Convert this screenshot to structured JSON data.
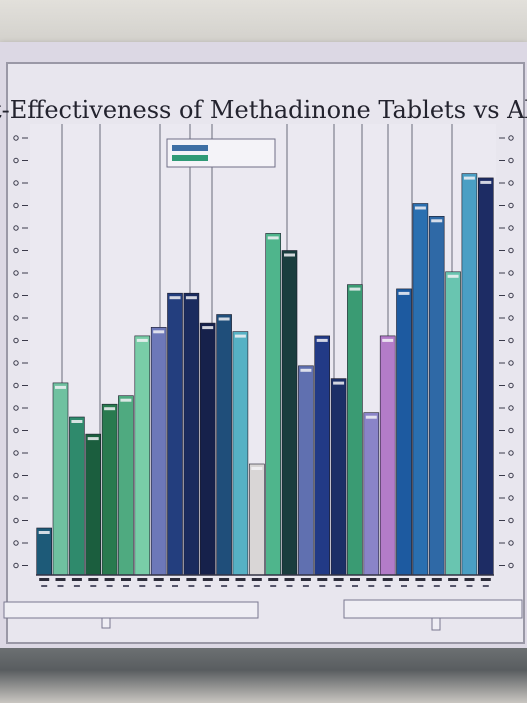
{
  "title": "t-Effectiveness of Methadinone Tablets vs Alternativ",
  "chart_data": {
    "type": "bar",
    "title": "t-Effectiveness of Methadinone Tablets vs Alternativ",
    "xlabel": "",
    "ylabel": "",
    "ylim": [
      0,
      100
    ],
    "grid": "vertical",
    "legend_position": "top-left",
    "bars": [
      {
        "value": 11,
        "color": "#1d5a78"
      },
      {
        "value": 45,
        "color": "#6fc1a0"
      },
      {
        "value": 37,
        "color": "#2f8a6c"
      },
      {
        "value": 33,
        "color": "#1b5e3e"
      },
      {
        "value": 40,
        "color": "#297a4f"
      },
      {
        "value": 42,
        "color": "#4faa80"
      },
      {
        "value": 56,
        "color": "#79cda8"
      },
      {
        "value": 58,
        "color": "#6d78b9"
      },
      {
        "value": 66,
        "color": "#233e7e"
      },
      {
        "value": 66,
        "color": "#1a2b5e"
      },
      {
        "value": 59,
        "color": "#16214b"
      },
      {
        "value": 61,
        "color": "#1f4e7a"
      },
      {
        "value": 57,
        "color": "#56b1c4"
      },
      {
        "value": 26,
        "color": "#d9d6d6"
      },
      {
        "value": 80,
        "color": "#4fb58c"
      },
      {
        "value": 76,
        "color": "#1a3d3e"
      },
      {
        "value": 49,
        "color": "#6070b0"
      },
      {
        "value": 56,
        "color": "#223a86"
      },
      {
        "value": 46,
        "color": "#1c2f67"
      },
      {
        "value": 68,
        "color": "#3a9b73"
      },
      {
        "value": 38,
        "color": "#8a84c8"
      },
      {
        "value": 56,
        "color": "#b37cc8"
      },
      {
        "value": 67,
        "color": "#1d5aa0"
      },
      {
        "value": 87,
        "color": "#2a6fb0"
      },
      {
        "value": 84,
        "color": "#2f69a6"
      },
      {
        "value": 71,
        "color": "#69c5b0"
      },
      {
        "value": 94,
        "color": "#4a9fc4"
      },
      {
        "value": 93,
        "color": "#1d2c64"
      }
    ]
  }
}
